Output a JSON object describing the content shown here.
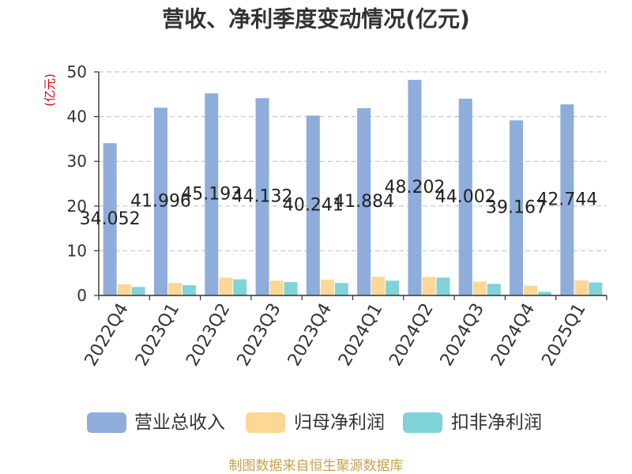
{
  "chart_data": {
    "type": "bar",
    "title": "营收、净利季度变动情况(亿元)",
    "ylabel": "(亿元)",
    "ylabel_color": "#e00000",
    "categories": [
      "2022Q4",
      "2023Q1",
      "2023Q2",
      "2023Q3",
      "2023Q4",
      "2024Q1",
      "2024Q2",
      "2024Q3",
      "2024Q4",
      "2025Q1"
    ],
    "series": [
      {
        "name": "营业总收入",
        "values": [
          34.052,
          41.996,
          45.193,
          44.132,
          40.241,
          41.884,
          48.202,
          44.002,
          39.167,
          42.744
        ],
        "color": "#8eaddb",
        "labels": true
      },
      {
        "name": "归母净利润",
        "values": [
          2.5,
          2.8,
          4.0,
          3.3,
          3.5,
          4.2,
          4.1,
          3.1,
          2.2,
          3.4
        ],
        "color": "#fdd796",
        "labels": false
      },
      {
        "name": "扣非净利润",
        "values": [
          1.9,
          2.3,
          3.6,
          3.0,
          2.8,
          3.3,
          4.0,
          2.6,
          0.8,
          2.9
        ],
        "color": "#80d3d6",
        "labels": false
      }
    ],
    "ylim": [
      0,
      50
    ],
    "yticks": [
      0,
      10,
      20,
      30,
      40,
      50
    ],
    "grid": true,
    "legend": "bottom"
  },
  "source": {
    "text": "制图数据来自恒生聚源数据库",
    "color": "#c8a24a"
  }
}
